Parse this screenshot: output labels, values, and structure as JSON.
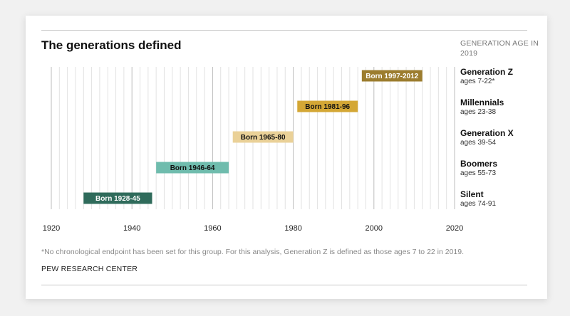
{
  "chart_data": {
    "type": "bar",
    "title": "The generations defined",
    "right_header": "GENERATION AGE IN 2019",
    "xlim": [
      1920,
      2020
    ],
    "x_ticks": [
      "1920",
      "1940",
      "1960",
      "1980",
      "2000",
      "2020"
    ],
    "grid": true,
    "series": [
      {
        "name": "Generation Z",
        "ages": "ages 7-22*",
        "label": "Born 1997-2012",
        "start": 1997,
        "end": 2012,
        "color": "#9c7d2f",
        "text_color": "#ffffff"
      },
      {
        "name": "Millennials",
        "ages": "ages 23-38",
        "label": "Born 1981-96",
        "start": 1981,
        "end": 1996,
        "color": "#d4a735",
        "text_color": "#111111"
      },
      {
        "name": "Generation X",
        "ages": "ages 39-54",
        "label": "Born 1965-80",
        "start": 1965,
        "end": 1980,
        "color": "#ead198",
        "text_color": "#111111"
      },
      {
        "name": "Boomers",
        "ages": "ages 55-73",
        "label": "Born 1946-64",
        "start": 1946,
        "end": 1964,
        "color": "#6fbcad",
        "text_color": "#111111"
      },
      {
        "name": "Silent",
        "ages": "ages 74-91",
        "label": "Born 1928-45",
        "start": 1928,
        "end": 1945,
        "color": "#2f6b5b",
        "text_color": "#ffffff"
      }
    ],
    "note": "*No chronological endpoint has been set for this group. For this analysis, Generation Z is defined as those ages 7 to 22 in 2019.",
    "source": "PEW RESEARCH CENTER"
  }
}
